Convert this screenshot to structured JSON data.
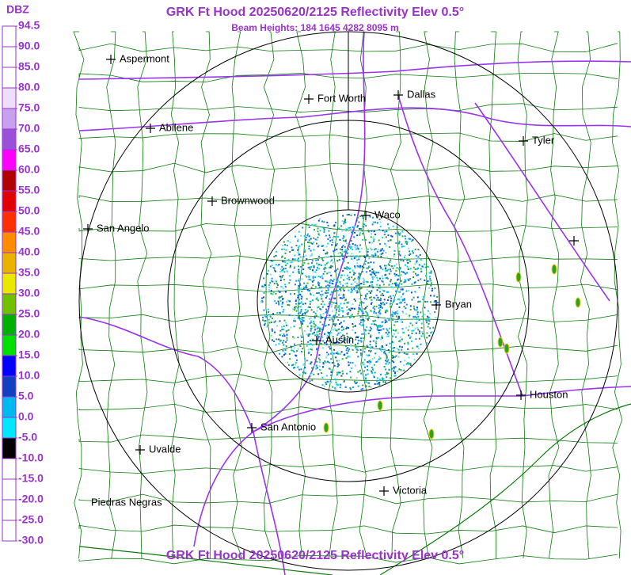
{
  "header": {
    "title": "GRK Ft Hood 20250620/2125 Reflectivity Elev 0.5°",
    "subtitle": "Beam Heights: 184 1645 4282 8095 m",
    "footer": "GRK Ft Hood 20250620/2125 Reflectivity Elev 0.5°"
  },
  "legend": {
    "unit": "DBZ",
    "labels": [
      "94.5",
      "90.0",
      "85.0",
      "80.0",
      "75.0",
      "70.0",
      "65.0",
      "60.0",
      "55.0",
      "50.0",
      "45.0",
      "40.0",
      "35.0",
      "30.0",
      "25.0",
      "20.0",
      "15.0",
      "10.0",
      "5.0",
      "0.0",
      "-5.0",
      "-10.0",
      "-15.0",
      "-20.0",
      "-25.0",
      "-30.0"
    ]
  },
  "cities": [
    "Aspermont",
    "Fort Worth",
    "Dallas",
    "Abilene",
    "Tyler",
    "Brownwood",
    "Waco",
    "San Angelo",
    "Bryan",
    "Austin",
    "Houston",
    "San Antonio",
    "Uvalde",
    "Victoria",
    "Piedras Negras"
  ]
}
